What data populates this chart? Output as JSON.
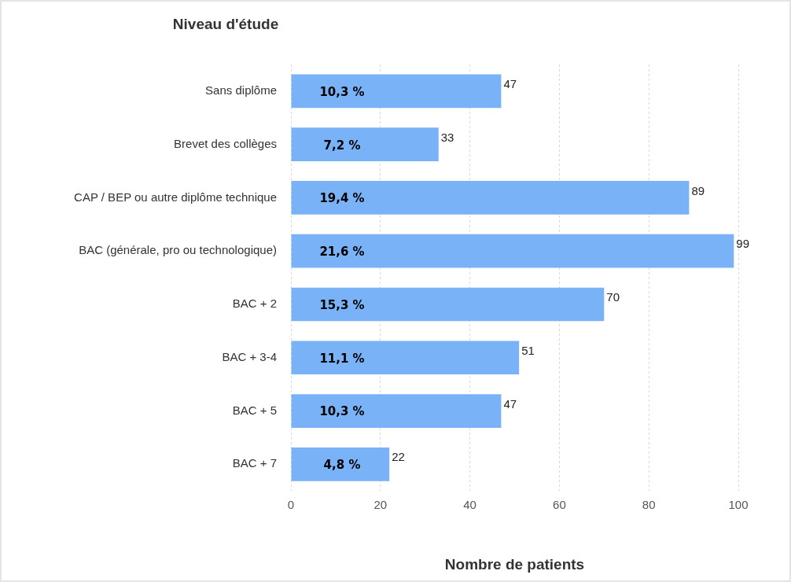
{
  "chart_data": {
    "type": "bar",
    "orientation": "horizontal",
    "ylabel": "Niveau d'étude",
    "xlabel": "Nombre de patients",
    "categories": [
      "Sans diplôme",
      "Brevet des collèges",
      "CAP / BEP ou autre diplôme technique",
      "BAC (générale, pro ou technologique)",
      "BAC + 2",
      "BAC + 3-4",
      "BAC + 5",
      "BAC + 7"
    ],
    "values": [
      47,
      33,
      89,
      99,
      70,
      51,
      47,
      22
    ],
    "data_labels": true,
    "annotations": [
      "10,3 %",
      "7,2 %",
      "19,4 %",
      "21,6 %",
      "15,3 %",
      "11,1 %",
      "10,3 %",
      "4,8 %"
    ],
    "color": "#7ab2f8",
    "xlim": [
      0,
      100
    ],
    "xticks": [
      0,
      20,
      40,
      60,
      80,
      100
    ],
    "grid": "x",
    "legend": false
  }
}
